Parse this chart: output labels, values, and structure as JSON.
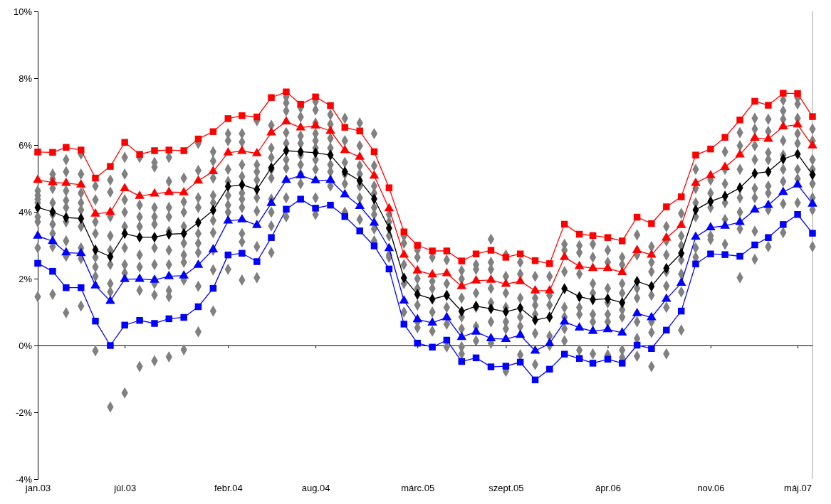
{
  "chart_data": {
    "type": "line",
    "x": [
      "2003-01",
      "2003-02",
      "2003-03",
      "2003-04",
      "2003-05",
      "2003-06",
      "2003-07",
      "2003-08",
      "2003-09",
      "2003-10",
      "2003-11",
      "2003-12",
      "2004-01",
      "2004-02",
      "2004-03",
      "2004-04",
      "2004-05",
      "2004-06",
      "2004-07",
      "2004-08",
      "2004-09",
      "2004-10",
      "2004-11",
      "2004-12",
      "2005-01",
      "2005-02",
      "2005-03",
      "2005-04",
      "2005-05",
      "2005-06",
      "2005-07",
      "2005-08",
      "2005-09",
      "2005-10",
      "2005-11",
      "2005-12",
      "2006-01",
      "2006-02",
      "2006-03",
      "2006-04",
      "2006-05",
      "2006-06",
      "2006-07",
      "2006-08",
      "2006-09",
      "2006-10",
      "2006-11",
      "2006-12",
      "2007-01",
      "2007-02",
      "2007-03",
      "2007-04",
      "2007-05",
      "2007-06"
    ],
    "xlim": [
      "2003-01",
      "2007-06"
    ],
    "xticks": [
      {
        "value": "2003-01",
        "label": "jan.03"
      },
      {
        "value": "2003-07",
        "label": "júl.03"
      },
      {
        "value": "2004-02",
        "label": "febr.04"
      },
      {
        "value": "2004-08",
        "label": "aug.04"
      },
      {
        "value": "2005-03",
        "label": "márc.05"
      },
      {
        "value": "2005-09",
        "label": "szept.05"
      },
      {
        "value": "2006-04",
        "label": "ápr.06"
      },
      {
        "value": "2006-11",
        "label": "nov.06"
      },
      {
        "value": "2007-05",
        "label": "máj.07"
      }
    ],
    "ylim": [
      -4,
      10
    ],
    "yticks": [
      {
        "value": -4,
        "label": "-4%"
      },
      {
        "value": -2,
        "label": "-2%"
      },
      {
        "value": 0,
        "label": "0%"
      },
      {
        "value": 2,
        "label": "2%"
      },
      {
        "value": 4,
        "label": "4%"
      },
      {
        "value": 6,
        "label": "6%"
      },
      {
        "value": 8,
        "label": "8%"
      },
      {
        "value": 10,
        "label": "10%"
      }
    ],
    "series": [
      {
        "type": "scatter",
        "marker": "diamond",
        "color": "#808080",
        "x": [
          "2003-01",
          "2003-01",
          "2003-01",
          "2003-01",
          "2003-01",
          "2003-01",
          "2003-01",
          "2003-01",
          "2003-02",
          "2003-02",
          "2003-02",
          "2003-02",
          "2003-02",
          "2003-02",
          "2003-02",
          "2003-02",
          "2003-02",
          "2003-03",
          "2003-03",
          "2003-03",
          "2003-03",
          "2003-03",
          "2003-03",
          "2003-03",
          "2003-03",
          "2003-03",
          "2003-04",
          "2003-04",
          "2003-04",
          "2003-04",
          "2003-04",
          "2003-04",
          "2003-04",
          "2003-04",
          "2003-04",
          "2003-05",
          "2003-05",
          "2003-05",
          "2003-05",
          "2003-05",
          "2003-05",
          "2003-05",
          "2003-05",
          "2003-06",
          "2003-06",
          "2003-06",
          "2003-06",
          "2003-06",
          "2003-06",
          "2003-06",
          "2003-06",
          "2003-06",
          "2003-07",
          "2003-07",
          "2003-07",
          "2003-07",
          "2003-07",
          "2003-07",
          "2003-07",
          "2003-07",
          "2003-07",
          "2003-08",
          "2003-08",
          "2003-08",
          "2003-08",
          "2003-08",
          "2003-08",
          "2003-08",
          "2003-08",
          "2003-09",
          "2003-09",
          "2003-09",
          "2003-09",
          "2003-09",
          "2003-09",
          "2003-09",
          "2003-09",
          "2003-09",
          "2003-09",
          "2003-10",
          "2003-10",
          "2003-10",
          "2003-10",
          "2003-10",
          "2003-10",
          "2003-10",
          "2003-10",
          "2003-10",
          "2003-10",
          "2003-11",
          "2003-11",
          "2003-11",
          "2003-11",
          "2003-11",
          "2003-11",
          "2003-11",
          "2003-11",
          "2003-11",
          "2003-12",
          "2003-12",
          "2003-12",
          "2003-12",
          "2003-12",
          "2003-12",
          "2003-12",
          "2003-12",
          "2003-12",
          "2004-01",
          "2004-01",
          "2004-01",
          "2004-01",
          "2004-01",
          "2004-01",
          "2004-01",
          "2004-01",
          "2004-01",
          "2004-01",
          "2004-02",
          "2004-02",
          "2004-02",
          "2004-02",
          "2004-02",
          "2004-02",
          "2004-02",
          "2004-02",
          "2004-03",
          "2004-03",
          "2004-03",
          "2004-03",
          "2004-03",
          "2004-03",
          "2004-03",
          "2004-03",
          "2004-03",
          "2004-03",
          "2004-04",
          "2004-04",
          "2004-04",
          "2004-04",
          "2004-04",
          "2004-04",
          "2004-04",
          "2004-04",
          "2004-05",
          "2004-05",
          "2004-05",
          "2004-05",
          "2004-05",
          "2004-05",
          "2004-05",
          "2004-05",
          "2004-05",
          "2004-06",
          "2004-06",
          "2004-06",
          "2004-06",
          "2004-06",
          "2004-06",
          "2004-06",
          "2004-06",
          "2004-06",
          "2004-07",
          "2004-07",
          "2004-07",
          "2004-07",
          "2004-07",
          "2004-07",
          "2004-07",
          "2004-07",
          "2004-08",
          "2004-08",
          "2004-08",
          "2004-08",
          "2004-08",
          "2004-08",
          "2004-08",
          "2004-08",
          "2004-08",
          "2004-08",
          "2004-09",
          "2004-09",
          "2004-09",
          "2004-09",
          "2004-09",
          "2004-09",
          "2004-09",
          "2004-10",
          "2004-10",
          "2004-10",
          "2004-10",
          "2004-10",
          "2004-10",
          "2004-11",
          "2004-11",
          "2004-11",
          "2004-11",
          "2004-11",
          "2004-11",
          "2004-11",
          "2004-12",
          "2004-12",
          "2004-12",
          "2004-12",
          "2004-12",
          "2004-12",
          "2004-12",
          "2004-12",
          "2005-01",
          "2005-01",
          "2005-01",
          "2005-01",
          "2005-01",
          "2005-02",
          "2005-02",
          "2005-02",
          "2005-02",
          "2005-02",
          "2005-03",
          "2005-03",
          "2005-03",
          "2005-03",
          "2005-03",
          "2005-03",
          "2005-03",
          "2005-04",
          "2005-04",
          "2005-04",
          "2005-04",
          "2005-04",
          "2005-05",
          "2005-05",
          "2005-05",
          "2005-05",
          "2005-05",
          "2005-05",
          "2005-06",
          "2005-06",
          "2005-06",
          "2005-06",
          "2005-06",
          "2005-06",
          "2005-06",
          "2005-07",
          "2005-07",
          "2005-07",
          "2005-07",
          "2005-07",
          "2005-07",
          "2005-08",
          "2005-08",
          "2005-08",
          "2005-08",
          "2005-08",
          "2005-08",
          "2005-08",
          "2005-09",
          "2005-09",
          "2005-09",
          "2005-09",
          "2005-09",
          "2005-09",
          "2005-09",
          "2005-10",
          "2005-10",
          "2005-10",
          "2005-10",
          "2005-10",
          "2005-10",
          "2005-11",
          "2005-11",
          "2005-11",
          "2005-11",
          "2005-11",
          "2005-11",
          "2005-12",
          "2005-12",
          "2005-12",
          "2005-12",
          "2005-12",
          "2005-12",
          "2006-01",
          "2006-01",
          "2006-01",
          "2006-01",
          "2006-01",
          "2006-01",
          "2006-01",
          "2006-02",
          "2006-02",
          "2006-02",
          "2006-02",
          "2006-02",
          "2006-02",
          "2006-03",
          "2006-03",
          "2006-03",
          "2006-03",
          "2006-03",
          "2006-03",
          "2006-03",
          "2006-04",
          "2006-04",
          "2006-04",
          "2006-04",
          "2006-04",
          "2006-04",
          "2006-04",
          "2006-05",
          "2006-05",
          "2006-05",
          "2006-05",
          "2006-05",
          "2006-05",
          "2006-05",
          "2006-05",
          "2006-06",
          "2006-06",
          "2006-06",
          "2006-06",
          "2006-06",
          "2006-06",
          "2006-06",
          "2006-07",
          "2006-07",
          "2006-07",
          "2006-07",
          "2006-07",
          "2006-07",
          "2006-07",
          "2006-08",
          "2006-08",
          "2006-08",
          "2006-08",
          "2006-08",
          "2006-08",
          "2006-08",
          "2006-09",
          "2006-09",
          "2006-09",
          "2006-09",
          "2006-09",
          "2006-09",
          "2006-09",
          "2006-10",
          "2006-10",
          "2006-10",
          "2006-10",
          "2006-10",
          "2006-10",
          "2006-11",
          "2006-11",
          "2006-11",
          "2006-11",
          "2006-11",
          "2006-12",
          "2006-12",
          "2006-12",
          "2006-12",
          "2006-12",
          "2006-12",
          "2007-01",
          "2007-01",
          "2007-01",
          "2007-01",
          "2007-01",
          "2007-01",
          "2007-01",
          "2007-02",
          "2007-02",
          "2007-02",
          "2007-02",
          "2007-02",
          "2007-02",
          "2007-02",
          "2007-02",
          "2007-03",
          "2007-03",
          "2007-03",
          "2007-03",
          "2007-03",
          "2007-03",
          "2007-03",
          "2007-03",
          "2007-04",
          "2007-04",
          "2007-04",
          "2007-04",
          "2007-04",
          "2007-04",
          "2007-04",
          "2007-04",
          "2007-04",
          "2007-05",
          "2007-05",
          "2007-05",
          "2007-05",
          "2007-05",
          "2007-05",
          "2007-05",
          "2007-05",
          "2007-06",
          "2007-06",
          "2007-06",
          "2007-06",
          "2007-06",
          "2007-06",
          "2007-06",
          "2007-06"
        ],
        "values": [
          4.63,
          4.49,
          4.38,
          4.27,
          3.85,
          3.7,
          2.92,
          1.46,
          5.13,
          4.99,
          4.7,
          4.27,
          3.92,
          3.63,
          3.35,
          2.96,
          1.53,
          5.56,
          5.2,
          4.63,
          4.34,
          4.13,
          3.7,
          3.13,
          2.67,
          0.98,
          5.73,
          5.13,
          4.56,
          4.27,
          4.06,
          3.56,
          2.92,
          2.6,
          1.18,
          4.77,
          4.36,
          3.7,
          3.35,
          2.64,
          2.35,
          2.07,
          -0.16,
          4.95,
          4.59,
          3.85,
          3.28,
          2.85,
          2.42,
          1.85,
          1.6,
          -1.84,
          5.63,
          5.13,
          4.36,
          3.99,
          3.56,
          2.92,
          2.42,
          2.17,
          -1.42,
          5.63,
          4.2,
          3.85,
          3.56,
          2.71,
          2.35,
          1.65,
          -0.63,
          5.48,
          5.34,
          4.13,
          3.85,
          3.63,
          2.92,
          2.42,
          1.85,
          1.51,
          -0.46,
          5.63,
          4.91,
          4.13,
          3.85,
          3.42,
          2.85,
          2.42,
          1.64,
          1.46,
          -0.34,
          5.01,
          4.3,
          3.99,
          3.56,
          3.06,
          2.71,
          2.49,
          1.96,
          -0.13,
          6.05,
          5.24,
          4.42,
          4.13,
          3.35,
          3.06,
          2.78,
          1.77,
          0.41,
          5.8,
          5.52,
          5.01,
          4.49,
          4.27,
          3.74,
          3.38,
          2.85,
          2.26,
          1.03,
          6.34,
          6.13,
          5.27,
          4.91,
          4.49,
          4.2,
          3.99,
          2.28,
          6.34,
          6.09,
          5.41,
          5.06,
          4.56,
          4.38,
          4.13,
          3.35,
          3.1,
          1.96,
          6.73,
          5.41,
          5.2,
          4.95,
          4.42,
          4.02,
          2.96,
          2.03,
          6.59,
          5.91,
          5.63,
          5.27,
          5.01,
          4.38,
          3.99,
          3.58,
          2.78,
          7.44,
          7.26,
          7.02,
          6.37,
          6.05,
          5.56,
          5.31,
          4.42,
          3.85,
          7.12,
          6.84,
          6.27,
          6.05,
          5.7,
          5.41,
          5.13,
          4.84,
          7.3,
          7.05,
          6.66,
          6.34,
          6.13,
          5.91,
          5.56,
          5.27,
          4.42,
          3.92,
          6.91,
          6.62,
          6.2,
          5.91,
          5.41,
          5.2,
          4.77,
          6.8,
          6.13,
          5.48,
          5.13,
          4.84,
          3.99,
          6.66,
          5.98,
          5.38,
          5.13,
          4.77,
          4.42,
          3.77,
          6.34,
          5.38,
          4.77,
          4.56,
          4.13,
          3.92,
          3.49,
          3.13,
          3.92,
          3.7,
          3.28,
          2.71,
          2.64,
          3.28,
          3.06,
          2.42,
          1.85,
          1.0,
          2.85,
          2.64,
          2.0,
          1.71,
          1.21,
          0.71,
          0.53,
          2.64,
          1.92,
          1.71,
          1.0,
          0.43,
          2.56,
          1.85,
          1.5,
          1.14,
          0.64,
          -0.04,
          2.24,
          1.99,
          1.42,
          0.85,
          0.5,
          -0.04,
          -0.25,
          2.42,
          2.28,
          1.57,
          1.14,
          0.57,
          0.14,
          3.18,
          2.49,
          2.28,
          1.71,
          1.28,
          0.71,
          0.07,
          2.71,
          2.07,
          1.57,
          1.14,
          0.71,
          0.5,
          -0.77,
          2.49,
          2.14,
          1.42,
          0.85,
          0.57,
          -0.28,
          2.07,
          1.42,
          1.21,
          0.93,
          0.36,
          -0.57,
          2.07,
          1.5,
          1.21,
          0.85,
          0.28,
          0.0,
          3.03,
          2.85,
          2.21,
          1.14,
          0.85,
          0.5,
          0.14,
          2.99,
          2.78,
          2.14,
          1.14,
          0.93,
          -0.14,
          3.03,
          2.64,
          1.85,
          1.57,
          0.93,
          0.71,
          -0.25,
          2.85,
          2.49,
          1.71,
          1.28,
          0.93,
          0.71,
          -0.28,
          2.64,
          2.42,
          1.85,
          1.57,
          1.07,
          0.85,
          -0.14,
          -0.36,
          3.31,
          2.71,
          1.71,
          1.42,
          0.71,
          0.21,
          -0.32,
          2.96,
          2.49,
          2.21,
          1.5,
          0.71,
          0.39,
          -0.63,
          3.56,
          3.13,
          2.71,
          2.21,
          1.78,
          1.14,
          -0.25,
          3.95,
          3.28,
          2.99,
          2.56,
          2.14,
          1.6,
          0.46,
          5.27,
          4.7,
          4.27,
          3.85,
          2.92,
          2.64,
          4.95,
          4.56,
          4.13,
          3.28,
          3.17,
          5.8,
          5.27,
          4.84,
          4.27,
          3.77,
          3.03,
          6.37,
          5.98,
          5.27,
          4.42,
          3.99,
          3.49,
          2.03,
          6.8,
          6.48,
          5.98,
          5.56,
          4.7,
          4.42,
          3.42,
          2.58,
          6.77,
          6.41,
          5.77,
          5.56,
          4.77,
          4.56,
          4.06,
          2.96,
          7.34,
          7.02,
          6.77,
          6.13,
          5.7,
          5.27,
          4.91,
          4.24,
          3.38,
          7.41,
          7.23,
          6.8,
          6.34,
          6.05,
          5.27,
          4.99,
          4.27,
          6.48,
          6.13,
          5.56,
          5.27,
          4.84,
          4.42,
          4.06,
          2.96
        ]
      },
      {
        "marker": "square",
        "color": "#ff0000",
        "values": [
          5.79,
          5.78,
          5.93,
          5.85,
          5.01,
          5.36,
          6.08,
          5.72,
          5.83,
          5.85,
          5.83,
          6.18,
          6.4,
          6.79,
          6.88,
          6.84,
          7.42,
          7.59,
          7.22,
          7.44,
          7.18,
          6.53,
          6.42,
          5.8,
          4.72,
          3.4,
          3.0,
          2.83,
          2.83,
          2.53,
          2.74,
          2.85,
          2.64,
          2.74,
          2.54,
          2.45,
          3.63,
          3.33,
          3.29,
          3.23,
          3.13,
          3.84,
          3.65,
          4.15,
          4.45,
          5.7,
          5.88,
          6.23,
          6.75,
          7.31,
          7.19,
          7.55,
          7.54,
          6.85
        ]
      },
      {
        "marker": "triangle",
        "color": "#ff0000",
        "values": [
          4.95,
          4.88,
          4.86,
          4.81,
          3.94,
          3.99,
          4.7,
          4.47,
          4.54,
          4.59,
          4.58,
          4.93,
          5.21,
          5.77,
          5.82,
          5.75,
          6.37,
          6.7,
          6.52,
          6.58,
          6.42,
          5.84,
          5.64,
          5.08,
          4.1,
          2.71,
          2.24,
          2.12,
          2.16,
          1.77,
          1.94,
          1.96,
          1.84,
          1.92,
          1.64,
          1.64,
          2.64,
          2.37,
          2.31,
          2.31,
          2.19,
          2.85,
          2.71,
          3.22,
          3.6,
          4.86,
          5.09,
          5.34,
          5.71,
          6.21,
          6.18,
          6.55,
          6.61,
          5.98
        ]
      },
      {
        "marker": "diamond",
        "color": "#000000",
        "values": [
          4.13,
          4.0,
          3.83,
          3.8,
          2.86,
          2.66,
          3.35,
          3.24,
          3.24,
          3.33,
          3.35,
          3.68,
          4.05,
          4.76,
          4.81,
          4.67,
          5.32,
          5.83,
          5.8,
          5.77,
          5.7,
          5.2,
          4.93,
          4.39,
          3.51,
          2.02,
          1.53,
          1.39,
          1.5,
          1.02,
          1.18,
          1.1,
          1.01,
          1.12,
          0.76,
          0.85,
          1.7,
          1.46,
          1.37,
          1.4,
          1.28,
          1.92,
          1.77,
          2.31,
          2.76,
          4.06,
          4.31,
          4.47,
          4.72,
          5.15,
          5.2,
          5.58,
          5.73,
          5.11
        ]
      },
      {
        "marker": "triangle",
        "color": "#0000ff",
        "values": [
          3.28,
          3.12,
          2.78,
          2.76,
          1.79,
          1.33,
          1.98,
          1.99,
          1.96,
          2.07,
          2.09,
          2.41,
          2.87,
          3.73,
          3.77,
          3.6,
          4.26,
          4.95,
          5.09,
          4.94,
          4.95,
          4.52,
          4.17,
          3.67,
          2.91,
          1.34,
          0.78,
          0.68,
          0.84,
          0.25,
          0.41,
          0.21,
          0.19,
          0.31,
          -0.16,
          0.06,
          0.71,
          0.53,
          0.43,
          0.48,
          0.38,
          0.96,
          0.84,
          1.39,
          1.87,
          3.25,
          3.53,
          3.58,
          3.69,
          4.06,
          4.2,
          4.59,
          4.81,
          4.24
        ]
      },
      {
        "marker": "square",
        "color": "#0000ff",
        "values": [
          2.46,
          2.22,
          1.73,
          1.73,
          0.73,
          0.0,
          0.61,
          0.75,
          0.66,
          0.8,
          0.84,
          1.16,
          1.71,
          2.71,
          2.76,
          2.51,
          3.23,
          4.08,
          4.38,
          4.11,
          4.2,
          3.86,
          3.43,
          2.98,
          2.29,
          0.64,
          0.07,
          -0.05,
          0.16,
          -0.48,
          -0.37,
          -0.64,
          -0.62,
          -0.5,
          -1.03,
          -0.71,
          -0.26,
          -0.39,
          -0.53,
          -0.41,
          -0.53,
          0.01,
          -0.09,
          0.46,
          1.03,
          2.44,
          2.74,
          2.72,
          2.67,
          3.01,
          3.23,
          3.62,
          3.92,
          3.36
        ]
      }
    ]
  }
}
